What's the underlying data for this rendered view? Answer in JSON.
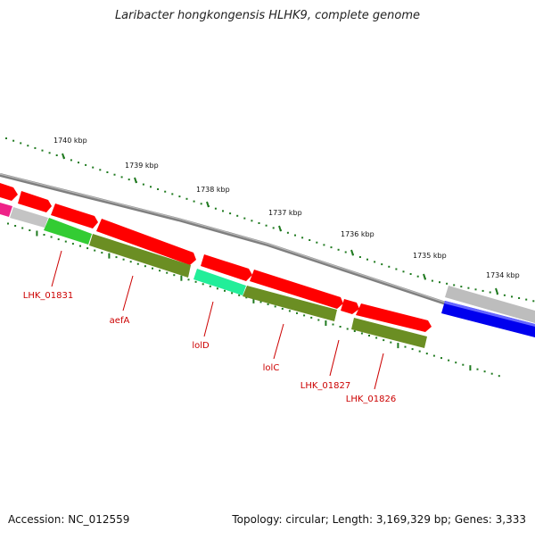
{
  "title": "Laribacter hongkongensis HLHK9, complete genome",
  "footer": {
    "accession": "Accession: NC_012559",
    "summary": "Topology: circular; Length: 3,169,329 bp; Genes: 3,333"
  },
  "colors": {
    "tick": "#1f7a1f",
    "backbone": "#8a8a8a",
    "label": "#cc0000",
    "forward_cds": "#ff0000",
    "reverse_cds": "#6b8e23",
    "bright_green": "#33cc33",
    "aqua": "#22ee99",
    "magenta": "#ee2288",
    "grey_feature": "#bbbbbb",
    "blue_feature": "#0000ee"
  },
  "ticks": [
    {
      "label": "1740 kbp"
    },
    {
      "label": "1739 kbp"
    },
    {
      "label": "1738 kbp"
    },
    {
      "label": "1737 kbp"
    },
    {
      "label": "1736 kbp"
    },
    {
      "label": "1735 kbp"
    },
    {
      "label": "1734 kbp"
    }
  ],
  "genes": [
    {
      "label": "LHK_01831"
    },
    {
      "label": "aefA"
    },
    {
      "label": "lolD"
    },
    {
      "label": "lolC"
    },
    {
      "label": "LHK_01827"
    },
    {
      "label": "LHK_01826"
    }
  ]
}
